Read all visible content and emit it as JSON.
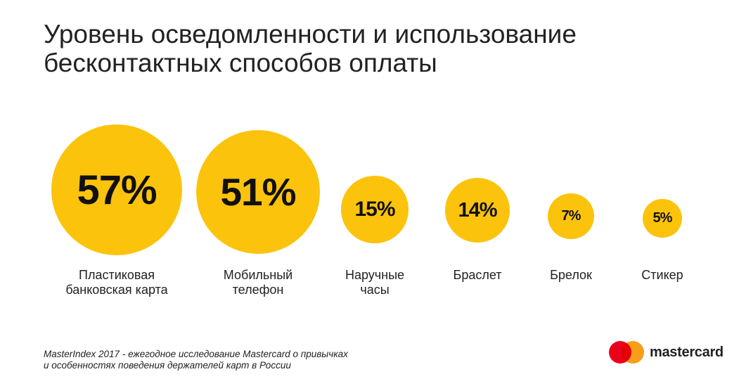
{
  "title": {
    "line1": "Уровень осведомленности и использование",
    "line2": "бесконтактных способов оплаты"
  },
  "chart_data": {
    "type": "bubble",
    "title": "Уровень осведомленности и использование бесконтактных способов оплаты",
    "categories": [
      "Пластиковая банковская карта",
      "Мобильный телефон",
      "Наручные часы",
      "Браслет",
      "Брелок",
      "Стикер"
    ],
    "values": [
      57,
      51,
      15,
      14,
      7,
      5
    ],
    "value_labels": [
      "57%",
      "51%",
      "15%",
      "14%",
      "7%",
      "5%"
    ],
    "label_lines": [
      [
        "Пластиковая",
        "банковская карта"
      ],
      [
        "Мобильный",
        "телефон"
      ],
      [
        "Наручные",
        "часы"
      ],
      [
        "Браслет"
      ],
      [
        "Брелок"
      ],
      [
        "Стикер"
      ]
    ],
    "bubble_color": "#fcc30d"
  },
  "footnote": {
    "line1": "MasterIndex 2017 - ежегодное исследование Mastercard о привычках",
    "line2": "и особенностях поведения держателей карт в России"
  },
  "logo": {
    "wordmark": "mastercard",
    "red": "#eb001b",
    "orange": "#f79e1b"
  }
}
